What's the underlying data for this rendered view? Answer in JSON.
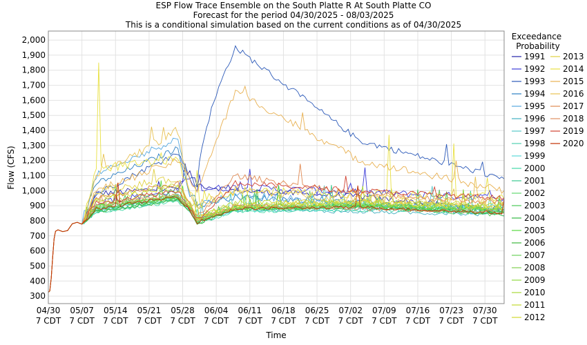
{
  "chart_data": {
    "type": "line",
    "title": "ESP Flow Trace Ensemble on the South Platte R At South Platte CO",
    "subtitle1": "Forecast for the period 04/30/2025 - 08/03/2025",
    "subtitle2": "This is a conditional simulation based on the current conditions as of 04/30/2025",
    "xlabel": "Time",
    "ylabel": "Flow (CFS)",
    "ylim": [
      250,
      2060
    ],
    "xlim_days": [
      0,
      95
    ],
    "y_ticks": [
      "300",
      "400",
      "500",
      "600",
      "700",
      "800",
      "900",
      "1,000",
      "1,100",
      "1,200",
      "1,300",
      "1,400",
      "1,500",
      "1,600",
      "1,700",
      "1,800",
      "1,900",
      "2,000"
    ],
    "x_ticks": [
      {
        "line1": "04/30",
        "line2": "7 CDT"
      },
      {
        "line1": "05/07",
        "line2": "7 CDT"
      },
      {
        "line1": "05/14",
        "line2": "7 CDT"
      },
      {
        "line1": "05/21",
        "line2": "7 CDT"
      },
      {
        "line1": "05/28",
        "line2": "7 CDT"
      },
      {
        "line1": "06/04",
        "line2": "7 CDT"
      },
      {
        "line1": "06/11",
        "line2": "7 CDT"
      },
      {
        "line1": "06/18",
        "line2": "7 CDT"
      },
      {
        "line1": "06/25",
        "line2": "7 CDT"
      },
      {
        "line1": "07/02",
        "line2": "7 CDT"
      },
      {
        "line1": "07/09",
        "line2": "7 CDT"
      },
      {
        "line1": "07/16",
        "line2": "7 CDT"
      },
      {
        "line1": "07/23",
        "line2": "7 CDT"
      },
      {
        "line1": "07/30",
        "line2": "7 CDT"
      }
    ],
    "legend_title_1": "Exceedance",
    "legend_title_2": "Probability",
    "legend_placement": "right",
    "grid": true,
    "observed_lead_in": [
      [
        0,
        325
      ],
      [
        0.3,
        335
      ],
      [
        0.6,
        420
      ],
      [
        0.9,
        560
      ],
      [
        1.2,
        680
      ],
      [
        1.5,
        730
      ],
      [
        2,
        740
      ],
      [
        3,
        728
      ],
      [
        4,
        735
      ],
      [
        5,
        780
      ],
      [
        6,
        790
      ],
      [
        7,
        778
      ]
    ],
    "series": [
      {
        "name": "1991",
        "color": "#2222aa",
        "shape": "bump",
        "p1": 980,
        "p2": 1020,
        "pd": 1040,
        "p3": 1000,
        "p4": 960,
        "p5": 870,
        "noise": 20
      },
      {
        "name": "1992",
        "color": "#3a3ad8",
        "shape": "bump",
        "p1": 920,
        "p2": 1000,
        "pd": 1010,
        "p3": 1020,
        "p4": 990,
        "p5": 950,
        "noise": 25
      },
      {
        "name": "1993",
        "color": "#2a58b8",
        "shape": "big",
        "p1": 980,
        "p2": 1250,
        "pd": 1020,
        "p3": 1950,
        "p4": 1330,
        "p5": 1080,
        "noise": 20
      },
      {
        "name": "1994",
        "color": "#2a7ec0",
        "shape": "bump",
        "p1": 1050,
        "p2": 1280,
        "pd": 900,
        "p3": 960,
        "p4": 920,
        "p5": 880,
        "noise": 20
      },
      {
        "name": "1995",
        "color": "#55a8e0",
        "shape": "bump",
        "p1": 1100,
        "p2": 1350,
        "pd": 900,
        "p3": 980,
        "p4": 900,
        "p5": 860,
        "noise": 25
      },
      {
        "name": "1996",
        "color": "#40b0c0",
        "shape": "flat",
        "p1": 870,
        "p2": 960,
        "pd": 800,
        "p3": 870,
        "p4": 860,
        "p5": 840,
        "noise": 12
      },
      {
        "name": "1997",
        "color": "#58c8c8",
        "shape": "flat",
        "p1": 880,
        "p2": 990,
        "pd": 820,
        "p3": 900,
        "p4": 910,
        "p5": 880,
        "noise": 18
      },
      {
        "name": "1998",
        "color": "#50d0b0",
        "shape": "flat",
        "p1": 860,
        "p2": 940,
        "pd": 790,
        "p3": 880,
        "p4": 890,
        "p5": 860,
        "noise": 12
      },
      {
        "name": "1999",
        "color": "#5ad8d8",
        "shape": "flat",
        "p1": 870,
        "p2": 950,
        "pd": 790,
        "p3": 870,
        "p4": 880,
        "p5": 900,
        "noise": 15
      },
      {
        "name": "2000",
        "color": "#44d8a8",
        "shape": "flat",
        "p1": 850,
        "p2": 930,
        "pd": 780,
        "p3": 860,
        "p4": 870,
        "p5": 850,
        "noise": 10
      },
      {
        "name": "2001",
        "color": "#38c890",
        "shape": "flat",
        "p1": 860,
        "p2": 940,
        "pd": 790,
        "p3": 870,
        "p4": 900,
        "p5": 860,
        "noise": 12
      },
      {
        "name": "2002",
        "color": "#60d870",
        "shape": "flat",
        "p1": 900,
        "p2": 960,
        "pd": 800,
        "p3": 880,
        "p4": 900,
        "p5": 850,
        "noise": 14
      },
      {
        "name": "2003",
        "color": "#4ac858",
        "shape": "flat",
        "p1": 870,
        "p2": 950,
        "pd": 790,
        "p3": 880,
        "p4": 890,
        "p5": 840,
        "noise": 14
      },
      {
        "name": "2004",
        "color": "#30b840",
        "shape": "flat",
        "p1": 880,
        "p2": 960,
        "pd": 800,
        "p3": 890,
        "p4": 900,
        "p5": 860,
        "noise": 14
      },
      {
        "name": "2005",
        "color": "#56d840",
        "shape": "flat",
        "p1": 890,
        "p2": 960,
        "pd": 810,
        "p3": 890,
        "p4": 910,
        "p5": 870,
        "noise": 14
      },
      {
        "name": "2006",
        "color": "#3cb83c",
        "shape": "flat",
        "p1": 860,
        "p2": 940,
        "pd": 780,
        "p3": 880,
        "p4": 890,
        "p5": 850,
        "noise": 12
      },
      {
        "name": "2007",
        "color": "#6ad05a",
        "shape": "flat",
        "p1": 880,
        "p2": 950,
        "pd": 790,
        "p3": 890,
        "p4": 900,
        "p5": 860,
        "noise": 16
      },
      {
        "name": "2008",
        "color": "#80d050",
        "shape": "flat",
        "p1": 890,
        "p2": 960,
        "pd": 800,
        "p3": 890,
        "p4": 910,
        "p5": 870,
        "noise": 14
      },
      {
        "name": "2009",
        "color": "#90d840",
        "shape": "flat",
        "p1": 900,
        "p2": 970,
        "pd": 810,
        "p3": 880,
        "p4": 900,
        "p5": 880,
        "noise": 12
      },
      {
        "name": "2010",
        "color": "#a8d838",
        "shape": "flat",
        "p1": 920,
        "p2": 1000,
        "pd": 820,
        "p3": 900,
        "p4": 920,
        "p5": 890,
        "noise": 18
      },
      {
        "name": "2011",
        "color": "#c0d830",
        "shape": "flat",
        "p1": 950,
        "p2": 1050,
        "pd": 830,
        "p3": 920,
        "p4": 930,
        "p5": 900,
        "noise": 20
      },
      {
        "name": "2012",
        "color": "#d0d830",
        "shape": "flat",
        "p1": 940,
        "p2": 1030,
        "pd": 820,
        "p3": 900,
        "p4": 920,
        "p5": 890,
        "noise": 18
      },
      {
        "name": "2013",
        "color": "#e0d040",
        "shape": "flat",
        "p1": 1000,
        "p2": 1080,
        "pd": 820,
        "p3": 900,
        "p4": 930,
        "p5": 900,
        "noise": 25
      },
      {
        "name": "2014",
        "color": "#e8e040",
        "shape": "spike",
        "p1": 1150,
        "p2": 1200,
        "pd": 900,
        "p3": 1000,
        "p4": 980,
        "p5": 960,
        "noise": 30
      },
      {
        "name": "2015",
        "color": "#e8b050",
        "shape": "big2",
        "p1": 1000,
        "p2": 1200,
        "pd": 1000,
        "p3": 1660,
        "p4": 1200,
        "p5": 1000,
        "noise": 25
      },
      {
        "name": "2016",
        "color": "#e8c050",
        "shape": "bump",
        "p1": 1100,
        "p2": 1400,
        "pd": 900,
        "p3": 1000,
        "p4": 950,
        "p5": 930,
        "noise": 30
      },
      {
        "name": "2017",
        "color": "#e08850",
        "shape": "bump",
        "p1": 950,
        "p2": 1050,
        "pd": 820,
        "p3": 1100,
        "p4": 980,
        "p5": 920,
        "noise": 20
      },
      {
        "name": "2018",
        "color": "#e09060",
        "shape": "flat",
        "p1": 900,
        "p2": 980,
        "pd": 800,
        "p3": 900,
        "p4": 880,
        "p5": 860,
        "noise": 14
      },
      {
        "name": "2019",
        "color": "#d04030",
        "shape": "flat",
        "p1": 920,
        "p2": 1000,
        "pd": 810,
        "p3": 1050,
        "p4": 1000,
        "p5": 950,
        "noise": 18
      },
      {
        "name": "2020",
        "color": "#c03000",
        "shape": "flat",
        "p1": 880,
        "p2": 960,
        "pd": 790,
        "p3": 880,
        "p4": 890,
        "p5": 850,
        "noise": 10
      }
    ]
  }
}
